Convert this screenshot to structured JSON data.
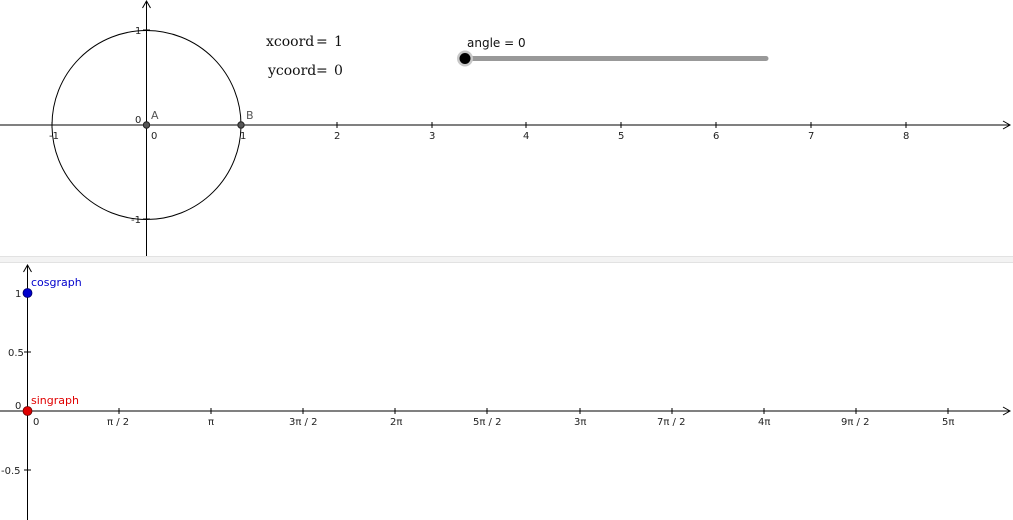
{
  "graphics1": {
    "x_ticks": [
      "-1",
      "0",
      "1",
      "2",
      "3",
      "4",
      "5",
      "6",
      "7",
      "8"
    ],
    "y_ticks": [
      "1",
      "-1"
    ],
    "origin_label": "0",
    "point_a": {
      "label": "A"
    },
    "point_b": {
      "label": "B"
    },
    "xcoord": {
      "name": "xcoord",
      "eq": "=",
      "value": "1"
    },
    "ycoord": {
      "name": "ycoord",
      "eq": "=",
      "value": "0"
    },
    "slider": {
      "label": "angle = 0",
      "value": 0
    }
  },
  "graphics2": {
    "x_ticks": [
      "0",
      "π / 2",
      "π",
      "3π / 2",
      "2π",
      "5π / 2",
      "3π",
      "7π / 2",
      "4π",
      "9π / 2",
      "5π"
    ],
    "y_ticks": [
      "1",
      "0.5",
      "0",
      "-0.5"
    ],
    "cosgraph": {
      "label": "cosgraph",
      "color": "#0000cc"
    },
    "singraph": {
      "label": "singraph",
      "color": "#e00000"
    }
  }
}
